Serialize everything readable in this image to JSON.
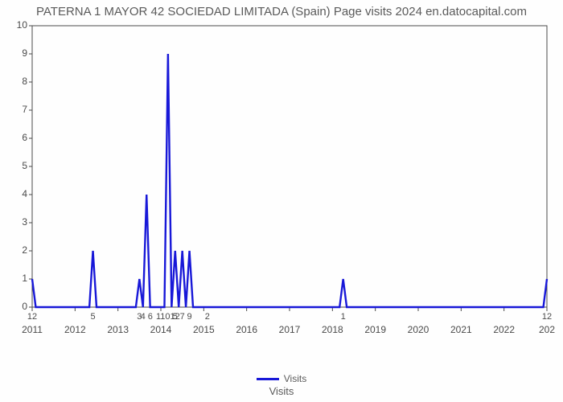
{
  "chart": {
    "type": "line",
    "title": "PATERNA 1 MAYOR 42 SOCIEDAD LIMITADA (Spain) Page visits 2024 en.datocapital.com",
    "title_fontsize": 15,
    "title_color": "#5a5a5a",
    "xlabel": "Visits",
    "xlabel_fontsize": 13,
    "legend_label": "Visits",
    "background_color": "#fefefe",
    "axis_color": "#4a4a4a",
    "line_color": "#1818d8",
    "line_width": 2.4,
    "tick_color": "#4a4a4a",
    "tick_fontsize": 12,
    "ylim": [
      0,
      10
    ],
    "yticks": [
      0,
      1,
      2,
      3,
      4,
      5,
      6,
      7,
      8,
      9,
      10
    ],
    "x_years": [
      "2011",
      "2012",
      "2013",
      "2014",
      "2015",
      "2016",
      "2017",
      "2018",
      "2019",
      "2020",
      "2021",
      "2022",
      "202"
    ],
    "x_year_step": 12,
    "n_points": 145,
    "series": [
      1,
      0,
      0,
      0,
      0,
      0,
      0,
      0,
      0,
      0,
      0,
      0,
      0,
      0,
      0,
      0,
      0,
      2,
      0,
      0,
      0,
      0,
      0,
      0,
      0,
      0,
      0,
      0,
      0,
      0,
      1,
      0,
      4,
      0,
      0,
      0,
      0,
      0,
      9,
      0,
      2,
      0,
      2,
      0,
      2,
      0,
      0,
      0,
      0,
      0,
      0,
      0,
      0,
      0,
      0,
      0,
      0,
      0,
      0,
      0,
      0,
      0,
      0,
      0,
      0,
      0,
      0,
      0,
      0,
      0,
      0,
      0,
      0,
      0,
      0,
      0,
      0,
      0,
      0,
      0,
      0,
      0,
      0,
      0,
      0,
      0,
      0,
      1,
      0,
      0,
      0,
      0,
      0,
      0,
      0,
      0,
      0,
      0,
      0,
      0,
      0,
      0,
      0,
      0,
      0,
      0,
      0,
      0,
      0,
      0,
      0,
      0,
      0,
      0,
      0,
      0,
      0,
      0,
      0,
      0,
      0,
      0,
      0,
      0,
      0,
      0,
      0,
      0,
      0,
      0,
      0,
      0,
      0,
      0,
      0,
      0,
      0,
      0,
      0,
      0,
      0,
      0,
      0,
      0,
      1
    ],
    "value_labels": [
      {
        "i": 0,
        "text": "12"
      },
      {
        "i": 17,
        "text": "5"
      },
      {
        "i": 30,
        "text": "3"
      },
      {
        "i": 32,
        "text": "4 6"
      },
      {
        "i": 38,
        "text": "11012"
      },
      {
        "i": 40,
        "text": "5"
      },
      {
        "i": 42,
        "text": "7"
      },
      {
        "i": 44,
        "text": "9"
      },
      {
        "i": 49,
        "text": "2"
      },
      {
        "i": 87,
        "text": "1"
      },
      {
        "i": 144,
        "text": "12"
      }
    ],
    "value_label_fontsize": 11,
    "value_label_color": "#4a4a4a"
  }
}
